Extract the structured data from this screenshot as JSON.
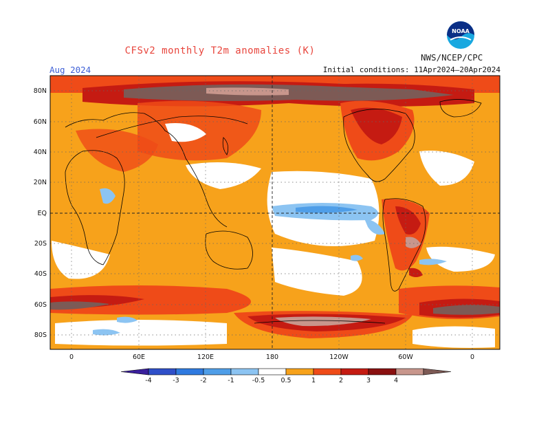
{
  "title": "CFSv2 monthly T2m anomalies (K)",
  "organization": "NWS/NCEP/CPC",
  "logo_text": "NOAA",
  "valid_month": "Aug 2024",
  "initial_conditions": "Initial conditions: 11Apr2024–20Apr2024",
  "lat_labels": [
    "80N",
    "60N",
    "40N",
    "20N",
    "EQ",
    "20S",
    "40S",
    "60S",
    "80S"
  ],
  "lon_labels": [
    "0",
    "60E",
    "120E",
    "180",
    "120W",
    "60W",
    "0"
  ],
  "colorbar": {
    "labels": [
      "-4",
      "-3",
      "-2",
      "-1",
      "-0.5",
      "0.5",
      "1",
      "2",
      "3",
      "4"
    ],
    "colors": [
      "#3a1f9c",
      "#2f4fc9",
      "#2f7ae0",
      "#4f9ee8",
      "#8cc4f2",
      "#ffffff",
      "#f7a21b",
      "#ef4b18",
      "#c51b12",
      "#8a1010",
      "#c8968c",
      "#7d5a55"
    ]
  }
}
